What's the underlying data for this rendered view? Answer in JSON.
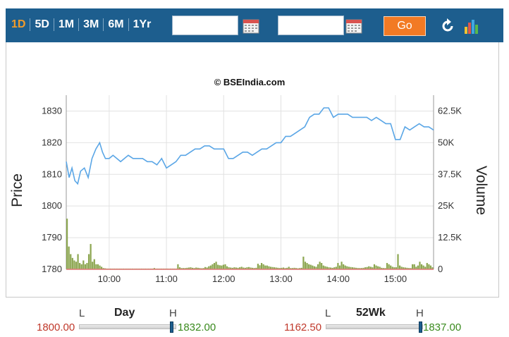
{
  "toolbar": {
    "ranges": [
      "1D",
      "5D",
      "1M",
      "3M",
      "6M",
      "1Yr"
    ],
    "active_range": "1D",
    "from_date_value": "",
    "to_date_value": "",
    "go_label": "Go"
  },
  "colors": {
    "toolbar_bg": "#1d5e8e",
    "active_tab": "#f39c2a",
    "go_button": "#f27a24",
    "price_line": "#5aa6e6",
    "volume_bars": "#8ca650",
    "range_low": "#c0392b",
    "range_high": "#3a8a1e"
  },
  "chart_data": {
    "type": "line",
    "title": "© BSEIndia.com",
    "xlabel": "",
    "ylabel": "Price",
    "y2label": "Volume",
    "xticks": [
      "10:00",
      "11:00",
      "12:00",
      "13:00",
      "14:00",
      "15:00"
    ],
    "yticks": [
      "1780",
      "1790",
      "1800",
      "1810",
      "1820",
      "1830"
    ],
    "y2ticks": [
      "0",
      "12.5K",
      "25K",
      "37.5K",
      "50K",
      "62.5K"
    ],
    "ylim": [
      1780,
      1835
    ],
    "y2lim": [
      0,
      68750
    ],
    "xlim": [
      "09:15",
      "15:40"
    ],
    "grid": true,
    "series": [
      {
        "axis": "left",
        "x": [
          "09:15",
          "09:18",
          "09:21",
          "09:24",
          "09:27",
          "09:30",
          "09:34",
          "09:38",
          "09:42",
          "09:46",
          "09:50",
          "09:53",
          "09:56",
          "10:00",
          "10:04",
          "10:08",
          "10:12",
          "10:16",
          "10:20",
          "10:25",
          "10:30",
          "10:35",
          "10:40",
          "10:45",
          "10:50",
          "10:55",
          "11:00",
          "11:05",
          "11:10",
          "11:15",
          "11:20",
          "11:25",
          "11:30",
          "11:35",
          "11:40",
          "11:45",
          "11:50",
          "11:55",
          "12:00",
          "12:05",
          "12:10",
          "12:15",
          "12:20",
          "12:25",
          "12:30",
          "12:35",
          "12:40",
          "12:45",
          "12:50",
          "12:55",
          "13:00",
          "13:05",
          "13:10",
          "13:15",
          "13:20",
          "13:25",
          "13:30",
          "13:35",
          "13:40",
          "13:45",
          "13:50",
          "13:55",
          "14:00",
          "14:05",
          "14:10",
          "14:15",
          "14:20",
          "14:25",
          "14:30",
          "14:35",
          "14:40",
          "14:45",
          "14:50",
          "14:55",
          "15:00",
          "15:05",
          "15:10",
          "15:15",
          "15:20",
          "15:25",
          "15:30",
          "15:35",
          "15:40"
        ],
        "values": [
          1814,
          1809,
          1812,
          1808,
          1807,
          1811,
          1812,
          1809,
          1815,
          1818,
          1820,
          1817,
          1815,
          1815,
          1816,
          1815,
          1814,
          1815,
          1816,
          1815,
          1815,
          1815,
          1814,
          1814,
          1813,
          1815,
          1812,
          1813,
          1814,
          1816,
          1816,
          1817,
          1818,
          1818,
          1819,
          1819,
          1818,
          1818,
          1818,
          1815,
          1815,
          1816,
          1817,
          1817,
          1816,
          1817,
          1818,
          1818,
          1819,
          1820,
          1820,
          1822,
          1822,
          1823,
          1824,
          1825,
          1828,
          1829,
          1829,
          1831,
          1831,
          1828,
          1829,
          1829,
          1829,
          1828,
          1828,
          1828,
          1828,
          1827,
          1828,
          1827,
          1826,
          1826,
          1821,
          1821,
          1825,
          1824,
          1825,
          1826,
          1825,
          1825,
          1824
        ]
      }
    ],
    "volume_series": {
      "axis": "right",
      "x_start": "09:15",
      "x_end": "15:40",
      "values": [
        20000,
        9000,
        6000,
        4500,
        3500,
        3000,
        6000,
        2500,
        2000,
        3500,
        2000,
        2500,
        6000,
        10000,
        3000,
        4000,
        2000,
        2000,
        1500,
        1000,
        500,
        400,
        300,
        300,
        300,
        300,
        300,
        300,
        300,
        300,
        300,
        300,
        300,
        300,
        300,
        300,
        300,
        300,
        300,
        300,
        300,
        300,
        300,
        300,
        300,
        300,
        300,
        300,
        500,
        300,
        300,
        300,
        300,
        300,
        300,
        300,
        300,
        300,
        300,
        300,
        300,
        2000,
        800,
        500,
        500,
        500,
        600,
        700,
        800,
        600,
        500,
        700,
        600,
        500,
        400,
        500,
        900,
        700,
        1200,
        1500,
        2000,
        2500,
        3000,
        1800,
        1600,
        1500,
        1800,
        2000,
        1200,
        800,
        700,
        600,
        800,
        700,
        600,
        800,
        1000,
        700,
        600,
        800,
        900,
        700,
        600,
        500,
        600,
        2200,
        1600,
        2500,
        2000,
        1500,
        1500,
        1200,
        1000,
        900,
        800,
        700,
        600,
        500,
        600,
        700,
        500,
        600,
        1000,
        500,
        500,
        600,
        500,
        400,
        500,
        600,
        5000,
        3000,
        2500,
        2000,
        1800,
        1500,
        1200,
        1000,
        2000,
        3000,
        2500,
        1500,
        1200,
        1000,
        800,
        700,
        600,
        800,
        1000,
        2500,
        1500,
        3000,
        2000,
        1500,
        1200,
        1000,
        900,
        800,
        700,
        600,
        500,
        500,
        500,
        600,
        800,
        900,
        1200,
        1000,
        800,
        2000,
        1500,
        1200,
        1000,
        600,
        500,
        500,
        2500,
        2000,
        1500,
        1000,
        800,
        800,
        6000,
        1500,
        1000,
        800,
        700,
        600,
        500,
        500,
        2000,
        2000,
        1000,
        1500,
        3000,
        2000,
        1500,
        1000,
        2500,
        2000,
        1500,
        800
      ]
    }
  },
  "range_day": {
    "title": "Day",
    "low_label": "L",
    "high_label": "H",
    "low_value": "1800.00",
    "high_value": "1832.00",
    "current_fraction": 0.97
  },
  "range_52wk": {
    "title": "52Wk",
    "low_label": "L",
    "high_label": "H",
    "low_value": "1162.50",
    "high_value": "1837.00",
    "current_fraction": 0.99
  }
}
